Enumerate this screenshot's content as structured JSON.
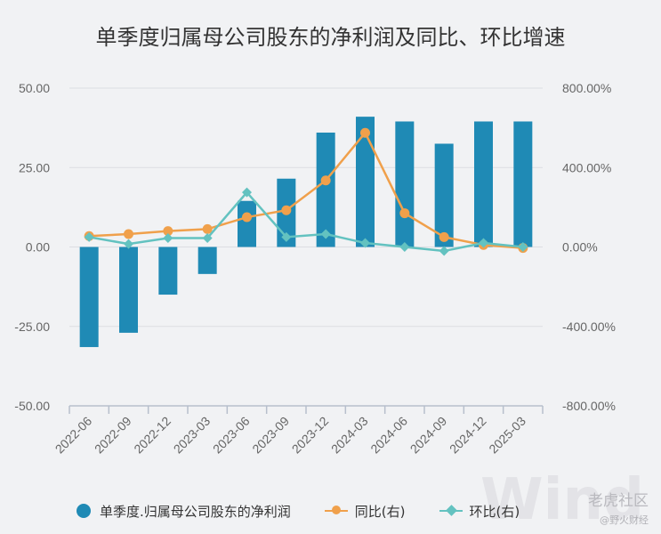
{
  "chart_data": {
    "type": "bar",
    "title": "单季度归属母公司股东的净利润及同比、环比增速",
    "categories": [
      "2022-06",
      "2022-09",
      "2022-12",
      "2023-03",
      "2023-06",
      "2023-09",
      "2023-12",
      "2024-03",
      "2024-06",
      "2024-09",
      "2024-12",
      "2025-03"
    ],
    "series": [
      {
        "name": "单季度.归属母公司股东的净利润",
        "type": "bar",
        "axis": "left",
        "color": "#1f8ab5",
        "values": [
          -31.5,
          -27,
          -15,
          -8.5,
          14.5,
          21.5,
          36,
          41,
          39.5,
          32.5,
          39.5,
          39.5
        ]
      },
      {
        "name": "同比(右)",
        "type": "line",
        "axis": "right",
        "color": "#f0a04b",
        "values": [
          55,
          65,
          80,
          90,
          150,
          185,
          335,
          575,
          170,
          50,
          10,
          -5
        ]
      },
      {
        "name": "环比(右)",
        "type": "line",
        "axis": "right",
        "color": "#63c2c0",
        "values": [
          50,
          15,
          45,
          45,
          275,
          50,
          65,
          20,
          0,
          -20,
          20,
          0
        ]
      }
    ],
    "y_left": {
      "ylim": [
        -50,
        50
      ],
      "ticks": [
        "50.00",
        "25.00",
        "0.00",
        "-25.00",
        "-50.00"
      ]
    },
    "y_right": {
      "ylim": [
        -800,
        800
      ],
      "ticks": [
        "800.00%",
        "400.00%",
        "0.00%",
        "-400.00%",
        "-800.00%"
      ]
    },
    "grid": true,
    "legend": "bottom"
  },
  "watermark": {
    "brand": "Wind",
    "site": "老虎社区",
    "handle": "@野火财经"
  }
}
